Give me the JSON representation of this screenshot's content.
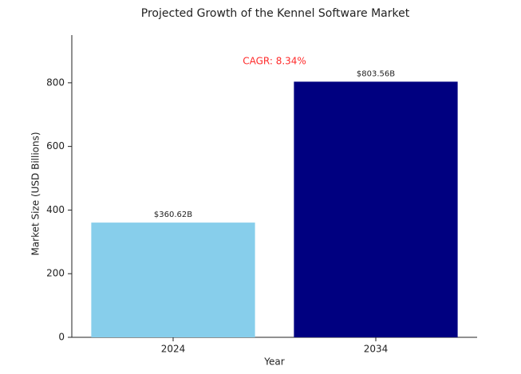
{
  "chart_data": {
    "type": "bar",
    "title": "Projected Growth of the Kennel Software Market",
    "x_label": "Year",
    "y_label": "Market Size (USD Billions)",
    "categories": [
      "2024",
      "2034"
    ],
    "values": [
      360.62,
      803.56
    ],
    "value_labels": [
      "$360.62B",
      "$803.56B"
    ],
    "colors": [
      "#87ceeb",
      "#000080"
    ],
    "ylim": [
      0,
      950
    ],
    "yticks": [
      0,
      200,
      400,
      600,
      800
    ],
    "grid": false,
    "annotation": {
      "text": "CAGR: 8.34%",
      "color": "#ff2a2a"
    }
  }
}
